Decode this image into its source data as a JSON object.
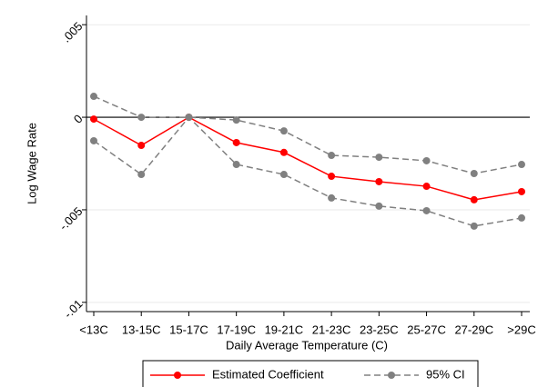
{
  "chart_data": {
    "type": "line",
    "x_label": "Daily Average Temperature (C)",
    "y_label": "Log Wage Rate",
    "categories": [
      "<13C",
      "13-15C",
      "15-17C",
      "17-19C",
      "19-21C",
      "21-23C",
      "23-25C",
      "25-27C",
      "27-29C",
      ">29C"
    ],
    "series": [
      {
        "name": "Estimated Coefficient",
        "color": "#ff0000",
        "values": [
          -0.0001,
          -0.00152,
          0,
          -0.00137,
          -0.0019,
          -0.00319,
          -0.00348,
          -0.00373,
          -0.00446,
          -0.00402
        ]
      },
      {
        "name": "95% CI",
        "color": "#808080",
        "upper": [
          0.00113,
          0,
          0,
          -0.00015,
          -0.00074,
          -0.00206,
          -0.00216,
          -0.00235,
          -0.00304,
          -0.00255
        ],
        "lower": [
          -0.00127,
          -0.00309,
          0,
          -0.00255,
          -0.00309,
          -0.00436,
          -0.0048,
          -0.00505,
          -0.00588,
          -0.00544
        ]
      }
    ],
    "ylim": [
      -0.0105,
      0.0055
    ],
    "yticks": [
      {
        "value": 0.005,
        "label": ".005"
      },
      0,
      {
        "value": -0.005,
        "label": "-.005"
      },
      {
        "value": -0.01,
        "label": "-.01"
      }
    ],
    "yline": 0,
    "grid": true
  }
}
